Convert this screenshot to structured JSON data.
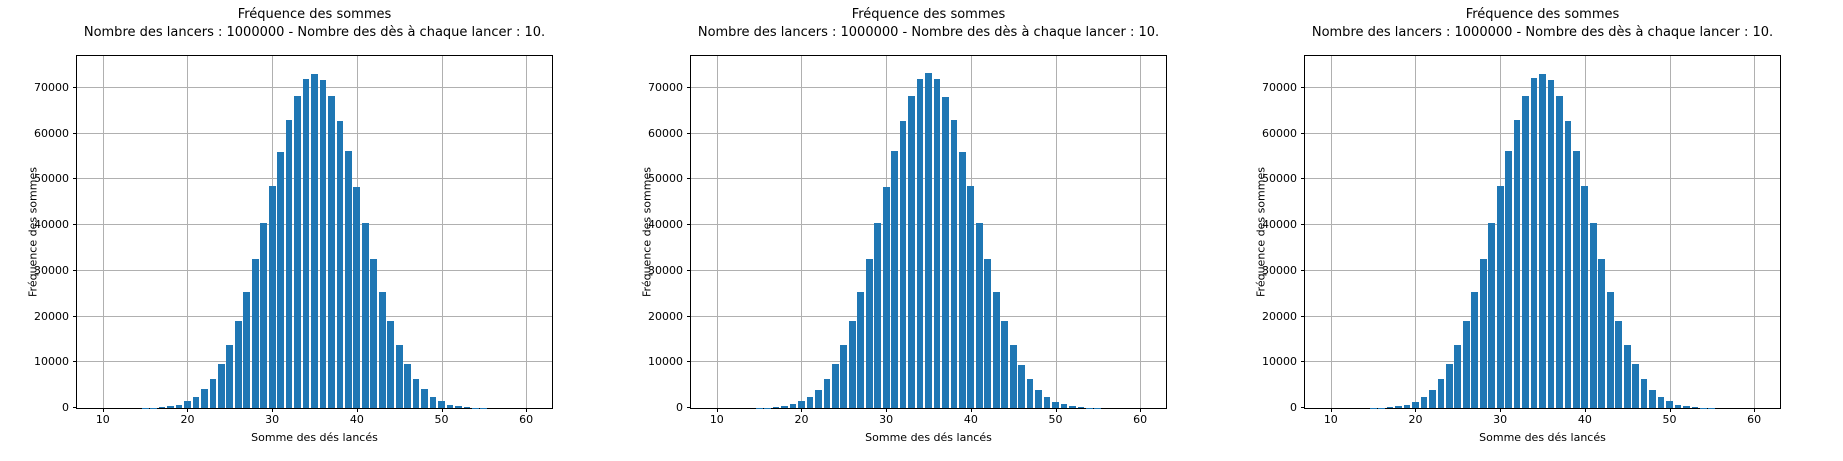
{
  "chart_data": [
    {
      "type": "bar",
      "title": "Fréquence des sommes",
      "subtitle": "Nombre des lancers : 1000000 - Nombre des dès à chaque lancer : 10.",
      "xlabel": "Somme des dés lancés",
      "ylabel": "Fréquence des sommes",
      "bar_color": "#1f77b4",
      "grid_color": "#b0b0b0",
      "grid": "on",
      "bar_width_units": 0.8,
      "xlim": [
        6.95,
        63.05
      ],
      "ylim": [
        0,
        76950
      ],
      "xticks": [
        10,
        20,
        30,
        40,
        50,
        60
      ],
      "yticks": [
        0,
        10000,
        20000,
        30000,
        40000,
        50000,
        60000,
        70000
      ],
      "x": [
        10,
        11,
        12,
        13,
        14,
        15,
        16,
        17,
        18,
        19,
        20,
        21,
        22,
        23,
        24,
        25,
        26,
        27,
        28,
        29,
        30,
        31,
        32,
        33,
        34,
        35,
        36,
        37,
        38,
        39,
        40,
        41,
        42,
        43,
        44,
        45,
        46,
        47,
        48,
        49,
        50,
        51,
        52,
        53,
        54,
        55,
        56,
        57,
        58,
        59,
        60
      ],
      "values": [
        0,
        0,
        1,
        3,
        13,
        30,
        86,
        182,
        398,
        760,
        1444,
        2434,
        4070,
        6334,
        9518,
        13781,
        19076,
        25344,
        32665,
        40394,
        48513,
        56036,
        62938,
        68125,
        71891,
        73112,
        71674,
        68250,
        62807,
        56208,
        48385,
        40509,
        32587,
        25414,
        19028,
        13707,
        9558,
        6311,
        4056,
        2441,
        1432,
        754,
        391,
        196,
        80,
        35,
        11,
        5,
        1,
        0,
        0
      ]
    },
    {
      "type": "bar",
      "title": "Fréquence des sommes",
      "subtitle": "Nombre des lancers : 1000000 - Nombre des dès à chaque lancer : 10.",
      "xlabel": "Somme des dés lancés",
      "ylabel": "Fréquence des sommes",
      "bar_color": "#1f77b4",
      "grid_color": "#b0b0b0",
      "grid": "on",
      "bar_width_units": 0.8,
      "xlim": [
        6.95,
        63.05
      ],
      "ylim": [
        0,
        76950
      ],
      "xticks": [
        10,
        20,
        30,
        40,
        50,
        60
      ],
      "yticks": [
        0,
        10000,
        20000,
        30000,
        40000,
        50000,
        60000,
        70000
      ],
      "x": [
        10,
        11,
        12,
        13,
        14,
        15,
        16,
        17,
        18,
        19,
        20,
        21,
        22,
        23,
        24,
        25,
        26,
        27,
        28,
        29,
        30,
        31,
        32,
        33,
        34,
        35,
        36,
        37,
        38,
        39,
        40,
        41,
        42,
        43,
        44,
        45,
        46,
        47,
        48,
        49,
        50,
        51,
        52,
        53,
        54,
        55,
        56,
        57,
        58,
        59,
        60
      ],
      "values": [
        0,
        0,
        1,
        4,
        11,
        34,
        80,
        193,
        387,
        775,
        1468,
        2452,
        4019,
        6367,
        9549,
        13722,
        19105,
        25410,
        32580,
        40512,
        48417,
        56189,
        62820,
        68244,
        72006,
        73256,
        71893,
        68067,
        62930,
        56057,
        48521,
        40398,
        32671,
        25352,
        19066,
        13769,
        9511,
        6372,
        4008,
        2462,
        1399,
        779,
        388,
        182,
        87,
        31,
        13,
        3,
        1,
        0,
        0
      ]
    },
    {
      "type": "bar",
      "title": "Fréquence des sommes",
      "subtitle": "Nombre des lancers : 1000000 - Nombre des dès à chaque lancer : 10.",
      "xlabel": "Somme des dés lancés",
      "ylabel": "Fréquence des sommes",
      "bar_color": "#1f77b4",
      "grid_color": "#b0b0b0",
      "grid": "on",
      "bar_width_units": 0.8,
      "xlim": [
        6.95,
        63.05
      ],
      "ylim": [
        0,
        76950
      ],
      "xticks": [
        10,
        20,
        30,
        40,
        50,
        60
      ],
      "yticks": [
        0,
        10000,
        20000,
        30000,
        40000,
        50000,
        60000,
        70000
      ],
      "x": [
        10,
        11,
        12,
        13,
        14,
        15,
        16,
        17,
        18,
        19,
        20,
        21,
        22,
        23,
        24,
        25,
        26,
        27,
        28,
        29,
        30,
        31,
        32,
        33,
        34,
        35,
        36,
        37,
        38,
        39,
        40,
        41,
        42,
        43,
        44,
        45,
        46,
        47,
        48,
        49,
        50,
        51,
        52,
        53,
        54,
        55,
        56,
        57,
        58,
        59,
        60
      ],
      "values": [
        0,
        0,
        1,
        4,
        12,
        32,
        88,
        185,
        401,
        763,
        1421,
        2475,
        4047,
        6321,
        9562,
        13733,
        19018,
        25431,
        32611,
        40478,
        48440,
        56142,
        62885,
        68107,
        72151,
        73020,
        71705,
        68213,
        62846,
        56178,
        48432,
        40421,
        32650,
        25369,
        19082,
        13712,
        9540,
        6329,
        4041,
        2429,
        1445,
        748,
        397,
        179,
        85,
        29,
        12,
        4,
        2,
        0,
        0
      ]
    }
  ]
}
